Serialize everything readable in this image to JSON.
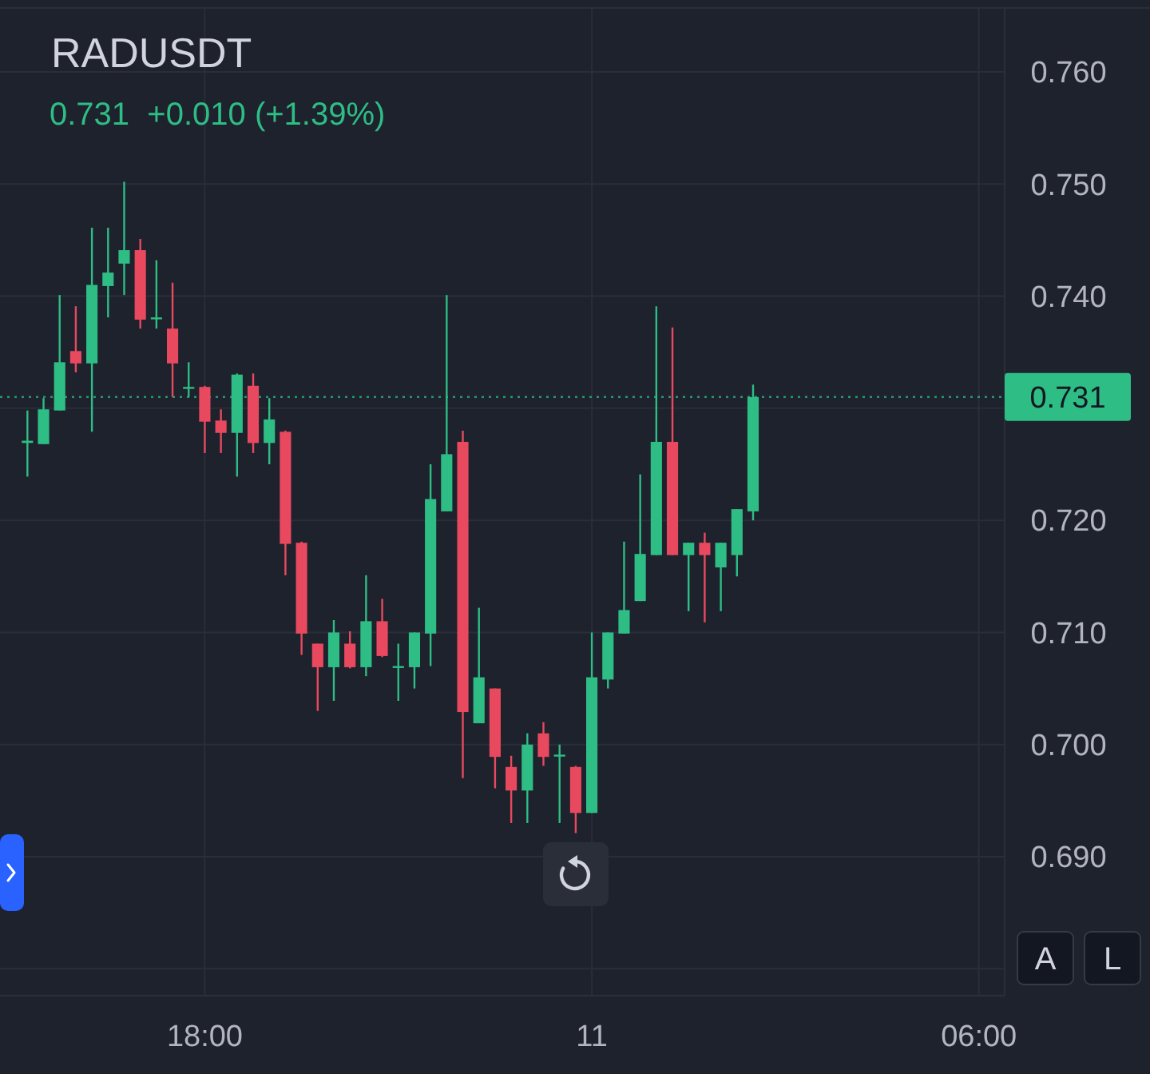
{
  "chart_data": {
    "type": "candlestick",
    "title": "RADUSDT",
    "subtitle": "0.731  +0.010 (+1.39%)",
    "categories": [
      null,
      null,
      null,
      null,
      null,
      null,
      null,
      null,
      null,
      null,
      null,
      "18:00",
      null,
      null,
      null,
      null,
      null,
      null,
      null,
      null,
      null,
      null,
      null,
      null,
      null,
      null,
      null,
      null,
      null,
      null,
      null,
      null,
      null,
      null,
      null,
      "11",
      null,
      null,
      null,
      null,
      null,
      null,
      null,
      null,
      null,
      null,
      null,
      null,
      null,
      null,
      null,
      null,
      null,
      null,
      null,
      null,
      null,
      null,
      null,
      "06:00",
      null
    ],
    "ohlc": [
      [
        0.7269,
        0.7298,
        0.7239,
        0.7271
      ],
      [
        0.7268,
        0.7309,
        0.7268,
        0.7299
      ],
      [
        0.7298,
        0.7401,
        0.7298,
        0.7341
      ],
      [
        0.7351,
        0.7391,
        0.7332,
        0.734
      ],
      [
        0.734,
        0.7461,
        0.7279,
        0.741
      ],
      [
        0.7409,
        0.7461,
        0.7381,
        0.7421
      ],
      [
        0.7429,
        0.7502,
        0.7401,
        0.7441
      ],
      [
        0.7441,
        0.7451,
        0.7371,
        0.7379
      ],
      [
        0.738,
        0.7432,
        0.7371,
        0.7381
      ],
      [
        0.7371,
        0.7412,
        0.731,
        0.734
      ],
      [
        0.7318,
        0.7341,
        0.731,
        0.7319
      ],
      [
        0.7319,
        0.732,
        0.726,
        0.7288
      ],
      [
        0.7289,
        0.7299,
        0.726,
        0.7278
      ],
      [
        0.7278,
        0.7331,
        0.7239,
        0.733
      ],
      [
        0.732,
        0.7331,
        0.726,
        0.7269
      ],
      [
        0.7269,
        0.7309,
        0.725,
        0.729
      ],
      [
        0.7279,
        0.728,
        0.7151,
        0.7179
      ],
      [
        0.718,
        0.7181,
        0.708,
        0.7099
      ],
      [
        0.709,
        0.709,
        0.703,
        0.7069
      ],
      [
        0.7069,
        0.7111,
        0.7039,
        0.71
      ],
      [
        0.709,
        0.7101,
        0.7068,
        0.7069
      ],
      [
        0.7069,
        0.7151,
        0.7061,
        0.711
      ],
      [
        0.711,
        0.713,
        0.7078,
        0.7079
      ],
      [
        0.7069,
        0.709,
        0.7039,
        0.707
      ],
      [
        0.7069,
        0.71,
        0.705,
        0.71
      ],
      [
        0.7099,
        0.725,
        0.707,
        0.7219
      ],
      [
        0.7208,
        0.7401,
        0.7208,
        0.7259
      ],
      [
        0.727,
        0.728,
        0.697,
        0.7029
      ],
      [
        0.7019,
        0.7122,
        0.7019,
        0.706
      ],
      [
        0.705,
        0.705,
        0.6961,
        0.6989
      ],
      [
        0.698,
        0.699,
        0.693,
        0.6959
      ],
      [
        0.6959,
        0.701,
        0.693,
        0.7
      ],
      [
        0.701,
        0.702,
        0.6981,
        0.6989
      ],
      [
        0.699,
        0.7,
        0.693,
        0.6991
      ],
      [
        0.698,
        0.6981,
        0.6921,
        0.6939
      ],
      [
        0.6939,
        0.71,
        0.6939,
        0.706
      ],
      [
        0.7058,
        0.71,
        0.705,
        0.71
      ],
      [
        0.7099,
        0.7181,
        0.7099,
        0.712
      ],
      [
        0.7128,
        0.7241,
        0.7128,
        0.717
      ],
      [
        0.7169,
        0.7391,
        0.7169,
        0.727
      ],
      [
        0.727,
        0.7372,
        0.7169,
        0.7169
      ],
      [
        0.7169,
        0.718,
        0.7119,
        0.718
      ],
      [
        0.718,
        0.7189,
        0.7109,
        0.7169
      ],
      [
        0.7158,
        0.718,
        0.7119,
        0.718
      ],
      [
        0.7169,
        0.721,
        0.715,
        0.721
      ],
      [
        0.7208,
        0.7321,
        0.72,
        0.731
      ],
      null,
      null,
      null,
      null,
      null,
      null,
      null,
      null,
      null,
      null,
      null,
      null,
      null,
      null,
      null
    ],
    "colors": [
      "#2ebd85",
      "#2ebd85",
      "#2ebd85",
      "#e8495f",
      "#2ebd85",
      "#2ebd85",
      "#2ebd85",
      "#e8495f",
      "#2ebd85",
      "#e8495f",
      "#2ebd85",
      "#e8495f",
      "#e8495f",
      "#2ebd85",
      "#e8495f",
      "#2ebd85",
      "#e8495f",
      "#e8495f",
      "#e8495f",
      "#2ebd85",
      "#e8495f",
      "#2ebd85",
      "#e8495f",
      "#2ebd85",
      "#2ebd85",
      "#2ebd85",
      "#2ebd85",
      "#e8495f",
      "#2ebd85",
      "#e8495f",
      "#e8495f",
      "#2ebd85",
      "#e8495f",
      "#2ebd85",
      "#e8495f",
      "#2ebd85",
      "#2ebd85",
      "#2ebd85",
      "#2ebd85",
      "#2ebd85",
      "#e8495f",
      "#2ebd85",
      "#e8495f",
      "#2ebd85",
      "#2ebd85",
      "#2ebd85",
      null,
      null,
      null,
      null,
      null,
      null,
      null,
      null,
      null,
      null,
      null,
      null,
      null,
      null,
      null
    ],
    "ylim": [
      0.6776,
      0.7657
    ],
    "yticks": [
      {
        "value": 0.68,
        "label": null
      },
      {
        "value": 0.69,
        "label": "0.690"
      },
      {
        "value": 0.7,
        "label": "0.700"
      },
      {
        "value": 0.71,
        "label": "0.710"
      },
      {
        "value": 0.72,
        "label": "0.720"
      },
      {
        "value": 0.73,
        "label": null
      },
      {
        "value": 0.74,
        "label": "0.740"
      },
      {
        "value": 0.75,
        "label": "0.750"
      },
      {
        "value": 0.76,
        "label": "0.760"
      }
    ],
    "grid": true,
    "ref_lines": [
      {
        "axis": "y",
        "value": 0.731,
        "label": "0.731",
        "color": "#2ebd85",
        "line_style": "dotted"
      }
    ],
    "annotations": [
      "A",
      "L"
    ]
  }
}
